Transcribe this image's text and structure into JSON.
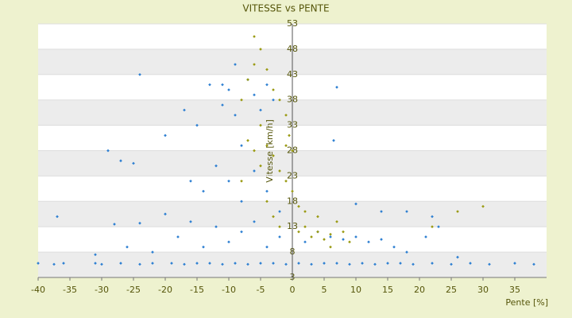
{
  "chart_data": {
    "type": "scatter",
    "title": "VITESSE vs PENTE",
    "x_label": "Pente [%]",
    "y_label": "Vitesse [km/h]",
    "xlim": [
      -40,
      40
    ],
    "xticks": [
      -40,
      -35,
      -30,
      -25,
      -20,
      -15,
      -10,
      -5,
      0,
      5,
      10,
      15,
      20,
      25,
      30,
      35
    ],
    "ylim": [
      3,
      53
    ],
    "yticks": [
      3,
      8,
      13,
      18,
      23,
      28,
      33,
      38,
      43,
      48,
      53
    ],
    "grid": true,
    "series": [
      {
        "color": "#2f80d2",
        "x": [
          -40,
          -37.5,
          -36,
          -31,
          -30,
          -27,
          -24,
          -22,
          -19,
          -17,
          -15,
          -13,
          -11,
          -9,
          -7,
          -5,
          -3,
          -1,
          1,
          3,
          5,
          7,
          9,
          11,
          13,
          15,
          17,
          19,
          22,
          25,
          28,
          31,
          35,
          38,
          -37,
          -31,
          -28,
          -26,
          -24,
          -22,
          -20,
          -18,
          -16,
          -14,
          -12,
          -10,
          -8,
          -6,
          -4,
          -2,
          2,
          4,
          6,
          8,
          10,
          12,
          14,
          16,
          18,
          21,
          23,
          26,
          18,
          22,
          10,
          14,
          -29,
          -27,
          -25,
          -24,
          -20,
          -17,
          -15,
          -13,
          -11,
          -10,
          -9,
          -8,
          -7,
          -6,
          -5,
          -4,
          -3,
          -12,
          -14,
          -16,
          -10,
          -8,
          -6,
          -4,
          -2,
          6.5,
          7,
          -9,
          -11
        ],
        "values": [
          5.8,
          5.6,
          5.8,
          5.8,
          5.6,
          5.8,
          5.6,
          5.8,
          5.8,
          5.6,
          5.8,
          5.8,
          5.6,
          5.8,
          5.6,
          5.8,
          5.8,
          5.6,
          5.8,
          5.6,
          5.8,
          5.8,
          5.6,
          5.8,
          5.6,
          5.8,
          5.8,
          5.6,
          5.8,
          5.6,
          5.8,
          5.6,
          5.8,
          5.6,
          15,
          7.5,
          13.5,
          9,
          13.7,
          8,
          15.5,
          11,
          14,
          9,
          13,
          10,
          12,
          14,
          9,
          11,
          10,
          12,
          11,
          10.5,
          11,
          10,
          10.5,
          9,
          8,
          11,
          13,
          7,
          16,
          15,
          17.5,
          16,
          28,
          26,
          25.5,
          43,
          31,
          36,
          33,
          41,
          37,
          40,
          35,
          29,
          42,
          39,
          36,
          41,
          38,
          25,
          20,
          22,
          22,
          18,
          24,
          20,
          16,
          30,
          40.5,
          45,
          41
        ]
      },
      {
        "color": "#9a9a12",
        "x": [
          -6,
          -5,
          -4,
          -3,
          -2,
          -1,
          -0.5,
          -6,
          -7,
          -8,
          -5,
          -4,
          -3,
          -2,
          -1,
          0,
          -6,
          -5,
          -7,
          -8,
          -4,
          -3,
          -2,
          1,
          2,
          3,
          4,
          5,
          6,
          7,
          8,
          9,
          2,
          4,
          30,
          26,
          22,
          6,
          1,
          0,
          -1
        ],
        "values": [
          50.5,
          48,
          44,
          40,
          38,
          35,
          31,
          45,
          42,
          38,
          33,
          29,
          27,
          24,
          22,
          20,
          28,
          25,
          30,
          22,
          18,
          15,
          13,
          12,
          13,
          11,
          12,
          10.5,
          11.5,
          14,
          12,
          10,
          16,
          15,
          17,
          16,
          13,
          9,
          17,
          28,
          29
        ]
      }
    ]
  }
}
